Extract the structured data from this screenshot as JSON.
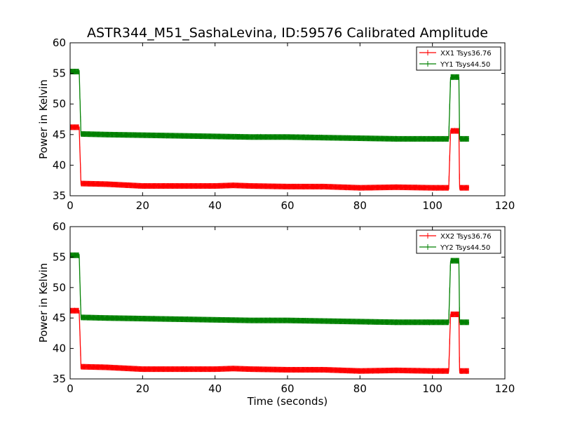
{
  "figure": {
    "title": "ASTR344_M51_SashaLevina, ID:59576 Calibrated Amplitude",
    "xlabel": "Time (seconds)"
  },
  "chart_data": [
    {
      "type": "line",
      "title": "ASTR344_M51_SashaLevina, ID:59576 Calibrated Amplitude",
      "xlabel": "",
      "ylabel": "Power in Kelvin",
      "xlim": [
        0,
        120
      ],
      "ylim": [
        35,
        60
      ],
      "xticks": [
        "0",
        "20",
        "40",
        "60",
        "80",
        "100",
        "120"
      ],
      "yticks": [
        "35",
        "40",
        "45",
        "50",
        "55",
        "60"
      ],
      "legend_position": "top-right",
      "grid": false,
      "series": [
        {
          "name": "XX1 Tsys36.76",
          "color": "#ff0000",
          "x": [
            0,
            2,
            2.5,
            3,
            10,
            20,
            30,
            40,
            45,
            50,
            60,
            70,
            80,
            90,
            100,
            104.5,
            105,
            105.5,
            107.3,
            107.5,
            108,
            110
          ],
          "y": [
            46.2,
            46.2,
            46.2,
            37.0,
            36.9,
            36.6,
            36.6,
            36.6,
            36.7,
            36.6,
            36.5,
            36.5,
            36.3,
            36.4,
            36.3,
            36.3,
            45.6,
            45.6,
            45.6,
            36.3,
            36.3,
            36.3
          ]
        },
        {
          "name": "YY1 Tsys44.50",
          "color": "#008000",
          "x": [
            0,
            2,
            2.5,
            3,
            10,
            20,
            30,
            40,
            50,
            60,
            70,
            80,
            90,
            100,
            104.5,
            105,
            105.5,
            107.3,
            107.5,
            108,
            110
          ],
          "y": [
            55.3,
            55.3,
            55.3,
            45.1,
            45.0,
            44.9,
            44.8,
            44.7,
            44.6,
            44.6,
            44.5,
            44.4,
            44.3,
            44.3,
            44.3,
            54.4,
            54.4,
            54.4,
            44.3,
            44.3,
            44.3
          ]
        }
      ]
    },
    {
      "type": "line",
      "title": "",
      "xlabel": "Time (seconds)",
      "ylabel": "Power in Kelvin",
      "xlim": [
        0,
        120
      ],
      "ylim": [
        35,
        60
      ],
      "xticks": [
        "0",
        "20",
        "40",
        "60",
        "80",
        "100",
        "120"
      ],
      "yticks": [
        "35",
        "40",
        "45",
        "50",
        "55",
        "60"
      ],
      "legend_position": "top-right",
      "grid": false,
      "series": [
        {
          "name": "XX2 Tsys36.76",
          "color": "#ff0000",
          "x": [
            0,
            2,
            2.5,
            3,
            10,
            20,
            30,
            40,
            45,
            50,
            60,
            70,
            80,
            90,
            100,
            104.5,
            105,
            105.5,
            107.3,
            107.5,
            108,
            110
          ],
          "y": [
            46.2,
            46.2,
            46.2,
            37.0,
            36.9,
            36.6,
            36.6,
            36.6,
            36.7,
            36.6,
            36.5,
            36.5,
            36.3,
            36.4,
            36.3,
            36.3,
            45.6,
            45.6,
            45.6,
            36.3,
            36.3,
            36.3
          ]
        },
        {
          "name": "YY2 Tsys44.50",
          "color": "#008000",
          "x": [
            0,
            2,
            2.5,
            3,
            10,
            20,
            30,
            40,
            50,
            60,
            70,
            80,
            90,
            100,
            104.5,
            105,
            105.5,
            107.3,
            107.5,
            108,
            110
          ],
          "y": [
            55.3,
            55.3,
            55.3,
            45.1,
            45.0,
            44.9,
            44.8,
            44.7,
            44.6,
            44.6,
            44.5,
            44.4,
            44.3,
            44.3,
            44.3,
            54.4,
            54.4,
            54.4,
            44.3,
            44.3,
            44.3
          ]
        }
      ]
    }
  ]
}
